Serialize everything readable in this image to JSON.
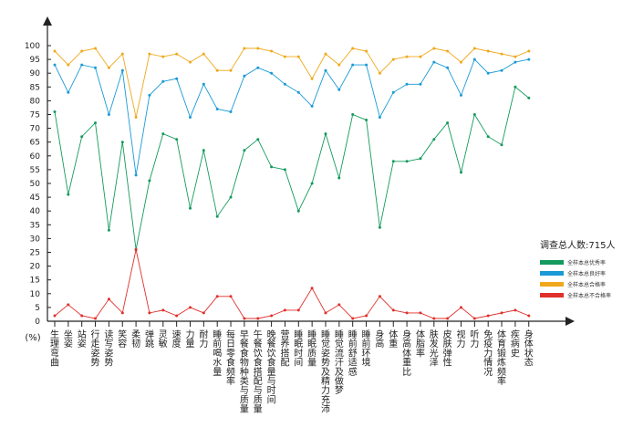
{
  "chart_data": {
    "type": "line",
    "title": "",
    "xlabel": "",
    "ylabel": "",
    "y_unit_label": "(%)",
    "ylim": [
      0,
      100
    ],
    "yticks": [
      0,
      5,
      10,
      15,
      20,
      25,
      30,
      35,
      40,
      45,
      50,
      55,
      60,
      65,
      70,
      75,
      80,
      85,
      90,
      95,
      100
    ],
    "categories": [
      "生理弯曲",
      "坐姿",
      "站姿",
      "行走姿势",
      "读写姿势",
      "笑容",
      "柔韧",
      "弹跳",
      "灵敏",
      "速度",
      "力量",
      "耐力",
      "睡前喝水量",
      "每日零食频率",
      "早餐食物种类与质量",
      "午餐饮食搭配与质量",
      "晚餐饮食量与时间",
      "营养搭配",
      "睡眠时间",
      "睡眠质量",
      "睡觉姿势及精力充沛",
      "睡觉流汗及做梦",
      "睡前舒适感",
      "睡前环境",
      "身高",
      "体重",
      "身高体重比",
      "体脂率",
      "肤发光泽",
      "皮肤弹性",
      "视力",
      "听力",
      "免疫力情况",
      "体育锻炼频率",
      "疾病史",
      "身体状态"
    ],
    "series": [
      {
        "name": "全样本总优秀率",
        "color": "#139a5c",
        "values": [
          76,
          46,
          67,
          72,
          33,
          65,
          26,
          51,
          68,
          66,
          41,
          62,
          38,
          45,
          62,
          66,
          56,
          55,
          40,
          50,
          68,
          52,
          75,
          73,
          34,
          58,
          58,
          59,
          66,
          72,
          54,
          75,
          67,
          64,
          85,
          81
        ]
      },
      {
        "name": "全样本总良好率",
        "color": "#1a9ad6",
        "values": [
          93,
          83,
          93,
          92,
          75,
          91,
          53,
          82,
          87,
          88,
          74,
          86,
          77,
          76,
          89,
          92,
          90,
          86,
          83,
          78,
          91,
          84,
          93,
          93,
          74,
          83,
          86,
          86,
          94,
          92,
          82,
          95,
          90,
          91,
          94,
          95
        ]
      },
      {
        "name": "全样本总合格率",
        "color": "#f0a81c",
        "values": [
          98,
          93,
          98,
          99,
          92,
          97,
          74,
          97,
          96,
          97,
          94,
          97,
          91,
          91,
          99,
          99,
          98,
          96,
          96,
          88,
          97,
          93,
          99,
          98,
          90,
          95,
          96,
          96,
          99,
          98,
          94,
          99,
          98,
          97,
          96,
          98
        ]
      },
      {
        "name": "全样本总不合格率",
        "color": "#e0302b",
        "values": [
          2,
          6,
          2,
          1,
          8,
          3,
          26,
          3,
          4,
          2,
          5,
          3,
          9,
          9,
          1,
          1,
          2,
          4,
          4,
          12,
          3,
          6,
          1,
          2,
          9,
          4,
          3,
          3,
          1,
          1,
          5,
          1,
          2,
          3,
          4,
          2
        ]
      }
    ]
  },
  "legend": {
    "title": "调查总人数:715人",
    "items": [
      {
        "label": "全样本总优秀率",
        "color": "#139a5c"
      },
      {
        "label": "全样本总良好率",
        "color": "#1a9ad6"
      },
      {
        "label": "全样本总合格率",
        "color": "#f0a81c"
      },
      {
        "label": "全样本总不合格率",
        "color": "#e0302b"
      }
    ]
  }
}
